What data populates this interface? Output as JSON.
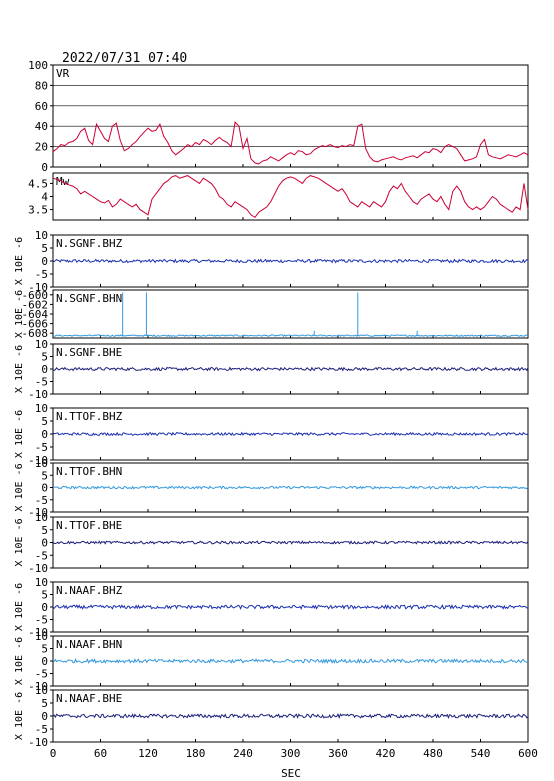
{
  "title": "2022/07/31 07:40",
  "xlabel": "SEC",
  "ylabel": "X 10E -6",
  "x_ticks": [
    0,
    60,
    120,
    180,
    240,
    300,
    360,
    420,
    480,
    540,
    600
  ],
  "colors": {
    "vr_mw": "#cc0033",
    "bhz": "#1a2fb0",
    "bhn": "#3399dd",
    "bhe": "#1a1f7a",
    "axes": "#000000"
  },
  "chart_data": [
    {
      "type": "line",
      "label": "VR",
      "ylim": [
        0,
        100
      ],
      "yticks": [
        0,
        20,
        40,
        60,
        80,
        100
      ],
      "grid": true,
      "series": [
        {
          "x": [
            0,
            5,
            10,
            15,
            20,
            25,
            30,
            35,
            40,
            45,
            50,
            55,
            60,
            65,
            70,
            75,
            80,
            85,
            90,
            95,
            100,
            105,
            110,
            115,
            120,
            125,
            130,
            135,
            140,
            145,
            150,
            155,
            160,
            165,
            170,
            175,
            180,
            185,
            190,
            195,
            200,
            205,
            210,
            215,
            220,
            225,
            230,
            235,
            240,
            245,
            250,
            255,
            260,
            265,
            270,
            275,
            280,
            285,
            290,
            295,
            300,
            305,
            310,
            315,
            320,
            325,
            330,
            335,
            340,
            345,
            350,
            355,
            360,
            365,
            370,
            375,
            380,
            385,
            390,
            395,
            400,
            405,
            410,
            415,
            420,
            425,
            430,
            435,
            440,
            445,
            450,
            455,
            460,
            465,
            470,
            475,
            480,
            485,
            490,
            495,
            500,
            505,
            510,
            515,
            520,
            525,
            530,
            535,
            540,
            545,
            550,
            555,
            560,
            565,
            570,
            575,
            580,
            585,
            590,
            595,
            600
          ],
          "y": [
            15,
            18,
            22,
            21,
            24,
            25,
            28,
            35,
            38,
            26,
            22,
            42,
            35,
            28,
            25,
            40,
            43,
            26,
            16,
            18,
            22,
            25,
            30,
            34,
            38,
            35,
            36,
            42,
            30,
            24,
            16,
            12,
            15,
            18,
            22,
            20,
            24,
            22,
            27,
            25,
            22,
            26,
            29,
            26,
            24,
            20,
            44,
            40,
            18,
            28,
            8,
            4,
            3,
            6,
            7,
            10,
            8,
            6,
            9,
            12,
            14,
            12,
            16,
            15,
            12,
            13,
            17,
            19,
            21,
            20,
            22,
            20,
            19,
            21,
            20,
            22,
            21,
            40,
            42,
            18,
            10,
            6,
            5,
            7,
            8,
            9,
            10,
            8,
            7,
            9,
            10,
            11,
            9,
            12,
            15,
            14,
            18,
            17,
            14,
            20,
            22,
            20,
            18,
            12,
            6,
            7,
            8,
            10,
            22,
            27,
            12,
            10,
            9,
            8,
            10,
            12,
            11,
            10,
            12,
            14,
            12
          ]
        }
      ]
    },
    {
      "type": "line",
      "label": "Mw",
      "ylim": [
        3.1,
        4.9
      ],
      "yticks": [
        3.5,
        4.0,
        4.5
      ],
      "grid": false,
      "series": [
        {
          "x": [
            0,
            5,
            10,
            15,
            20,
            25,
            30,
            35,
            40,
            45,
            50,
            55,
            60,
            65,
            70,
            75,
            80,
            85,
            90,
            95,
            100,
            105,
            110,
            115,
            120,
            125,
            130,
            135,
            140,
            145,
            150,
            155,
            160,
            165,
            170,
            175,
            180,
            185,
            190,
            195,
            200,
            205,
            210,
            215,
            220,
            225,
            230,
            235,
            240,
            245,
            250,
            255,
            260,
            265,
            270,
            275,
            280,
            285,
            290,
            295,
            300,
            305,
            310,
            315,
            320,
            325,
            330,
            335,
            340,
            345,
            350,
            355,
            360,
            365,
            370,
            375,
            380,
            385,
            390,
            395,
            400,
            405,
            410,
            415,
            420,
            425,
            430,
            435,
            440,
            445,
            450,
            455,
            460,
            465,
            470,
            475,
            480,
            485,
            490,
            495,
            500,
            505,
            510,
            515,
            520,
            525,
            530,
            535,
            540,
            545,
            550,
            555,
            560,
            565,
            570,
            575,
            580,
            585,
            590,
            595,
            600
          ],
          "y": [
            4.7,
            4.65,
            4.6,
            4.5,
            4.45,
            4.4,
            4.3,
            4.1,
            4.2,
            4.1,
            4.0,
            3.9,
            3.8,
            3.75,
            3.85,
            3.6,
            3.7,
            3.9,
            3.8,
            3.7,
            3.6,
            3.7,
            3.5,
            3.4,
            3.3,
            3.9,
            4.1,
            4.3,
            4.5,
            4.6,
            4.75,
            4.8,
            4.7,
            4.75,
            4.8,
            4.7,
            4.6,
            4.5,
            4.7,
            4.6,
            4.5,
            4.3,
            4.0,
            3.9,
            3.7,
            3.6,
            3.8,
            3.7,
            3.6,
            3.5,
            3.3,
            3.2,
            3.4,
            3.5,
            3.6,
            3.8,
            4.1,
            4.4,
            4.6,
            4.7,
            4.75,
            4.7,
            4.6,
            4.5,
            4.7,
            4.8,
            4.75,
            4.7,
            4.6,
            4.5,
            4.4,
            4.3,
            4.2,
            4.3,
            4.1,
            3.8,
            3.7,
            3.6,
            3.8,
            3.7,
            3.6,
            3.8,
            3.7,
            3.6,
            3.8,
            4.2,
            4.4,
            4.3,
            4.5,
            4.2,
            4.0,
            3.8,
            3.7,
            3.9,
            4.0,
            4.1,
            3.9,
            3.8,
            4.0,
            3.7,
            3.5,
            4.2,
            4.4,
            4.2,
            3.8,
            3.6,
            3.5,
            3.6,
            3.5,
            3.6,
            3.8,
            4.0,
            3.9,
            3.7,
            3.6,
            3.5,
            3.4,
            3.6,
            3.5,
            4.5,
            3.5
          ]
        }
      ]
    },
    {
      "type": "line",
      "label": "N.SGNF.BHZ",
      "ylim": [
        -10,
        10
      ],
      "yticks": [
        -10,
        -5,
        0,
        5,
        10
      ],
      "color_key": "bhz",
      "baseline": 0,
      "noise": 0.6,
      "spikes": []
    },
    {
      "type": "line",
      "label": "N.SGNF.BHN",
      "ylim": [
        -609,
        -599
      ],
      "yticks": [
        -600,
        -602,
        -604,
        -606,
        -608
      ],
      "color_key": "bhn",
      "baseline": -608.5,
      "noise": 0.15,
      "spikes": [
        [
          88,
          -599.5
        ],
        [
          118,
          -599.5
        ],
        [
          385,
          -599.5
        ],
        [
          330,
          -607.5
        ],
        [
          460,
          -607.5
        ]
      ]
    },
    {
      "type": "line",
      "label": "N.SGNF.BHE",
      "ylim": [
        -10,
        10
      ],
      "yticks": [
        -10,
        -5,
        0,
        5,
        10
      ],
      "color_key": "bhe",
      "baseline": 0,
      "noise": 0.6,
      "spikes": []
    },
    {
      "type": "line",
      "label": "N.TTOF.BHZ",
      "ylim": [
        -10,
        10
      ],
      "yticks": [
        -10,
        -5,
        0,
        5,
        10
      ],
      "color_key": "bhz",
      "baseline": 0,
      "noise": 0.5,
      "spikes": []
    },
    {
      "type": "line",
      "label": "N.TTOF.BHN",
      "ylim": [
        -10,
        10
      ],
      "yticks": [
        -10,
        -5,
        0,
        5,
        10
      ],
      "color_key": "bhn",
      "baseline": 0,
      "noise": 0.5,
      "spikes": []
    },
    {
      "type": "line",
      "label": "N.TTOF.BHE",
      "ylim": [
        -10,
        10
      ],
      "yticks": [
        -10,
        -5,
        0,
        5,
        10
      ],
      "color_key": "bhe",
      "baseline": 0,
      "noise": 0.5,
      "spikes": []
    },
    {
      "type": "line",
      "label": "N.NAAF.BHZ",
      "ylim": [
        -10,
        10
      ],
      "yticks": [
        -10,
        -5,
        0,
        5,
        10
      ],
      "color_key": "bhz",
      "baseline": 0,
      "noise": 0.7,
      "spikes": []
    },
    {
      "type": "line",
      "label": "N.NAAF.BHN",
      "ylim": [
        -10,
        10
      ],
      "yticks": [
        -10,
        -5,
        0,
        5,
        10
      ],
      "color_key": "bhn",
      "baseline": 0,
      "noise": 0.7,
      "spikes": []
    },
    {
      "type": "line",
      "label": "N.NAAF.BHE",
      "ylim": [
        -10,
        10
      ],
      "yticks": [
        -10,
        -5,
        0,
        5,
        10
      ],
      "color_key": "bhe",
      "baseline": 0,
      "noise": 0.7,
      "spikes": []
    }
  ]
}
